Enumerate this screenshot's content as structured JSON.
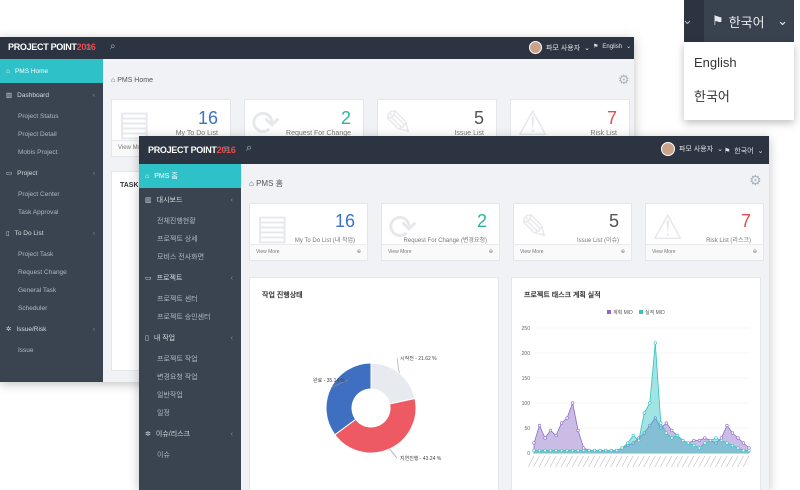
{
  "back": {
    "logo_main": "PROJECT POINT",
    "logo_year": "2016",
    "user": "파모 사용자",
    "lang": "English",
    "breadcrumb": "PMS Home",
    "side": [
      {
        "label": "PMS Home",
        "type": "active",
        "icon": "home-icon"
      },
      {
        "label": "Dashboard",
        "type": "sec",
        "icon": "chart-icon"
      },
      {
        "label": "Project Status",
        "type": "sub"
      },
      {
        "label": "Project Detail",
        "type": "sub"
      },
      {
        "label": "Mobis Project",
        "type": "sub"
      },
      {
        "label": "Project",
        "type": "sec",
        "icon": "monitor-icon"
      },
      {
        "label": "Project Center",
        "type": "sub"
      },
      {
        "label": "Task Approval",
        "type": "sub"
      },
      {
        "label": "To Do List",
        "type": "sec",
        "icon": "list-icon"
      },
      {
        "label": "Project Task",
        "type": "sub"
      },
      {
        "label": "Request Change",
        "type": "sub"
      },
      {
        "label": "General Task",
        "type": "sub"
      },
      {
        "label": "Scheduler",
        "type": "sub"
      },
      {
        "label": "Issue/Risk",
        "type": "sec",
        "icon": "sparkle-icon"
      },
      {
        "label": "Issue",
        "type": "sub"
      }
    ],
    "cards": [
      {
        "num": "16",
        "label": "My To Do List",
        "color": "#3b73c7"
      },
      {
        "num": "2",
        "label": "Request For Change",
        "color": "#2fb3a1"
      },
      {
        "num": "5",
        "label": "Issue List",
        "color": "#555"
      },
      {
        "num": "7",
        "label": "Risk List",
        "color": "#e84c4f"
      }
    ],
    "view_more": "View More",
    "task_title": "TASK P"
  },
  "front": {
    "logo_main": "PROJECT POINT",
    "logo_year": "2016",
    "user": "파모 사용자",
    "lang": "한국어",
    "breadcrumb": "PMS 홈",
    "side": [
      {
        "label": "PMS 홈",
        "type": "active",
        "icon": "home-icon"
      },
      {
        "label": "대시보드",
        "type": "sec",
        "icon": "chart-icon"
      },
      {
        "label": "전체진행현황",
        "type": "sub"
      },
      {
        "label": "프로젝트 상세",
        "type": "sub"
      },
      {
        "label": "모비스 전사화면",
        "type": "sub"
      },
      {
        "label": "프로젝트",
        "type": "sec",
        "icon": "monitor-icon"
      },
      {
        "label": "프로젝트 센터",
        "type": "sub"
      },
      {
        "label": "프로젝트 승인센터",
        "type": "sub"
      },
      {
        "label": "내 작업",
        "type": "sec",
        "icon": "list-icon"
      },
      {
        "label": "프로젝트 작업",
        "type": "sub"
      },
      {
        "label": "변경요청 작업",
        "type": "sub"
      },
      {
        "label": "일반작업",
        "type": "sub"
      },
      {
        "label": "일정",
        "type": "sub"
      },
      {
        "label": "이슈/리스크",
        "type": "sec",
        "icon": "sparkle-icon"
      },
      {
        "label": "이슈",
        "type": "sub"
      }
    ],
    "cards": [
      {
        "num": "16",
        "label": "My To Do List (내 작업)",
        "color": "#3b73c7"
      },
      {
        "num": "2",
        "label": "Request For Change (변경요청)",
        "color": "#2fb3a1"
      },
      {
        "num": "5",
        "label": "Issue List (이슈)",
        "color": "#555"
      },
      {
        "num": "7",
        "label": "Risk List (리스크)",
        "color": "#e84c4f"
      }
    ],
    "view_more": "View More",
    "pie_panel": {
      "title": "작업 진행상태",
      "slices": [
        {
          "label": "시작전 - 21.62 %",
          "value": 21.62,
          "color": "#e7ebef"
        },
        {
          "label": "지연진행 - 43.24 %",
          "value": 43.24,
          "color": "#ee5a64"
        },
        {
          "label": "완료 - 35.14 %",
          "value": 35.14,
          "color": "#3f6fc0"
        }
      ]
    },
    "line_panel": {
      "title": "프로젝트 태스크 계획 실적",
      "legend": [
        {
          "label": "계획 M/D",
          "color": "#8c6bc8"
        },
        {
          "label": "실적 M/D",
          "color": "#2fc4c0"
        }
      ],
      "yticks": [
        "250",
        "200",
        "150",
        "100",
        "50",
        "0"
      ]
    }
  },
  "dropdown": {
    "current": "한국어",
    "options": [
      "English",
      "한국어"
    ]
  },
  "chart_data": {
    "type": "area",
    "title": "프로젝트 태스크 계획 실적",
    "ylim": [
      0,
      250
    ],
    "x_count": 40,
    "series": [
      {
        "name": "계획 M/D",
        "values": [
          20,
          55,
          30,
          45,
          35,
          60,
          70,
          100,
          45,
          10,
          5,
          5,
          5,
          5,
          5,
          5,
          10,
          15,
          20,
          30,
          40,
          55,
          70,
          50,
          60,
          45,
          35,
          25,
          20,
          25,
          25,
          30,
          25,
          20,
          30,
          55,
          40,
          30,
          20,
          10
        ]
      },
      {
        "name": "실적 M/D",
        "values": [
          5,
          5,
          5,
          5,
          5,
          5,
          5,
          5,
          5,
          5,
          5,
          5,
          5,
          5,
          5,
          5,
          10,
          20,
          35,
          25,
          80,
          100,
          220,
          60,
          40,
          30,
          35,
          25,
          20,
          15,
          10,
          20,
          25,
          30,
          25,
          20,
          15,
          10,
          5,
          5
        ]
      }
    ]
  }
}
